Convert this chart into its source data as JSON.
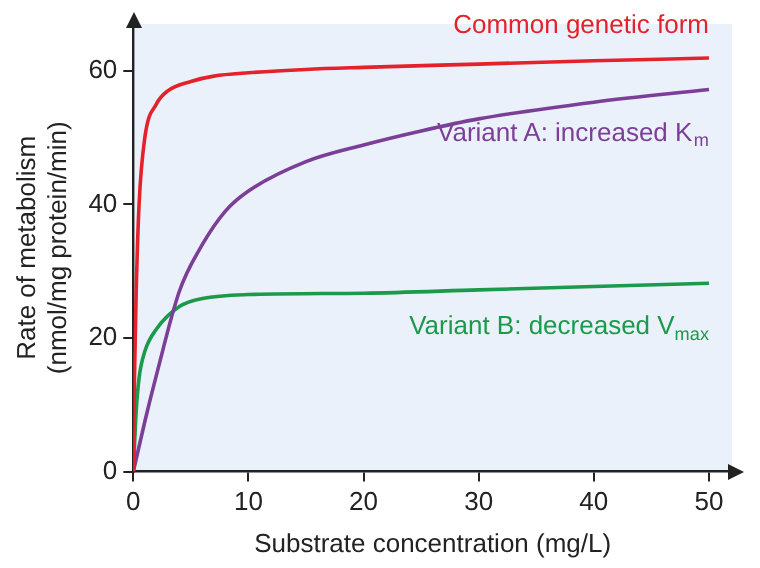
{
  "chart_data": {
    "type": "line",
    "xlabel": "Substrate concentration (mg/L)",
    "ylabel": "Rate of metabolism\n(nmol/mg protein/min)",
    "xlim": [
      0,
      52
    ],
    "ylim": [
      0,
      67
    ],
    "xticks": [
      0,
      10,
      20,
      30,
      40,
      50
    ],
    "yticks": [
      0,
      20,
      40,
      60
    ],
    "grid": false,
    "legend": false,
    "marker": "none",
    "line_style": "solid",
    "series": [
      {
        "name": "Common genetic form",
        "color": "#e3222b",
        "x": [
          0,
          0.1,
          0.25,
          0.5,
          1,
          2,
          3,
          5,
          7,
          10,
          15,
          20,
          30,
          40,
          50
        ],
        "values": [
          0,
          14,
          27,
          40,
          50,
          55,
          57,
          58.4,
          59.2,
          59.7,
          60.2,
          60.5,
          61,
          61.5,
          61.9
        ]
      },
      {
        "name": "Variant A: increased K$_{m}$",
        "color": "#7b3f98",
        "x": [
          0,
          1,
          2,
          4,
          6,
          8,
          10,
          15,
          20,
          25,
          30,
          40,
          50
        ],
        "values": [
          0,
          7.5,
          14.4,
          27,
          34,
          39,
          42,
          46.4,
          48.9,
          51,
          52.8,
          55.3,
          57.2
        ]
      },
      {
        "name": "Variant B: decreased V$_{max}$",
        "color": "#1a9a4a",
        "x": [
          0,
          0.25,
          0.5,
          1,
          2,
          4,
          6,
          10,
          20,
          30,
          40,
          50
        ],
        "values": [
          0,
          9,
          14,
          18,
          21.3,
          24.7,
          25.9,
          26.5,
          26.7,
          27.2,
          27.7,
          28.2
        ]
      }
    ]
  }
}
